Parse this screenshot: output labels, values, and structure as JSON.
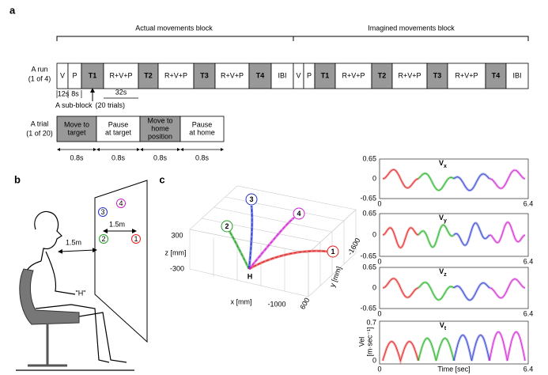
{
  "panel_a": {
    "label": "a",
    "actual_block": "Actual movements block",
    "imagined_block": "Imagined movements block",
    "run_label": [
      "A run",
      "(1 of 4)"
    ],
    "run_cells": [
      "V",
      "P",
      "T1",
      "R+V+P",
      "T2",
      "R+V+P",
      "T3",
      "R+V+P",
      "T4",
      "IBI",
      "V",
      "P",
      "T1",
      "R+V+P",
      "T2",
      "R+V+P",
      "T3",
      "R+V+P",
      "T4",
      "IBI"
    ],
    "timing": [
      "12s",
      "8s",
      "32s"
    ],
    "sub_block": [
      "A sub-block",
      "(20 trials)"
    ],
    "trial_label": [
      "A trial",
      "(1 of 20)"
    ],
    "trial_cells": [
      [
        "Move to",
        "target"
      ],
      [
        "Pause",
        "at target"
      ],
      [
        "Move to",
        "home",
        "position"
      ],
      [
        "Pause",
        "at home"
      ]
    ],
    "trial_durations": [
      "0.8s",
      "0.8s",
      "0.8s",
      "0.8s"
    ]
  },
  "panel_b": {
    "label": "b",
    "distance_targets": "1.5m",
    "distance_subject": "1.5m",
    "targets": [
      "1",
      "2",
      "3",
      "4"
    ],
    "home": "\"H\""
  },
  "panel_c": {
    "label": "c",
    "z_ticks": [
      "300",
      "-300"
    ],
    "z_label": "z [mm]",
    "x_label": "x [mm]",
    "x_tick": "-1000",
    "y_label": "y [mm]",
    "y_ticks": [
      "-1600",
      "600"
    ],
    "home": "H",
    "targets": [
      "1",
      "2",
      "3",
      "4"
    ]
  },
  "panel_velocity": {
    "plots": [
      {
        "title": "V",
        "sub": "x",
        "yticks": [
          "0.65",
          "0",
          "-0.65"
        ]
      },
      {
        "title": "V",
        "sub": "y",
        "yticks": [
          "0.65",
          "0",
          "-0.65"
        ]
      },
      {
        "title": "V",
        "sub": "z",
        "yticks": [
          "0.65",
          "0",
          "-0.65"
        ]
      },
      {
        "title": "V",
        "sub": "t",
        "yticks": [
          "0.7",
          "0"
        ]
      }
    ],
    "xticks": [
      "0",
      "6.4"
    ],
    "y_label": "Vel",
    "y_unit": "[m·sec⁻¹]",
    "x_label": "Time [sec]"
  }
}
